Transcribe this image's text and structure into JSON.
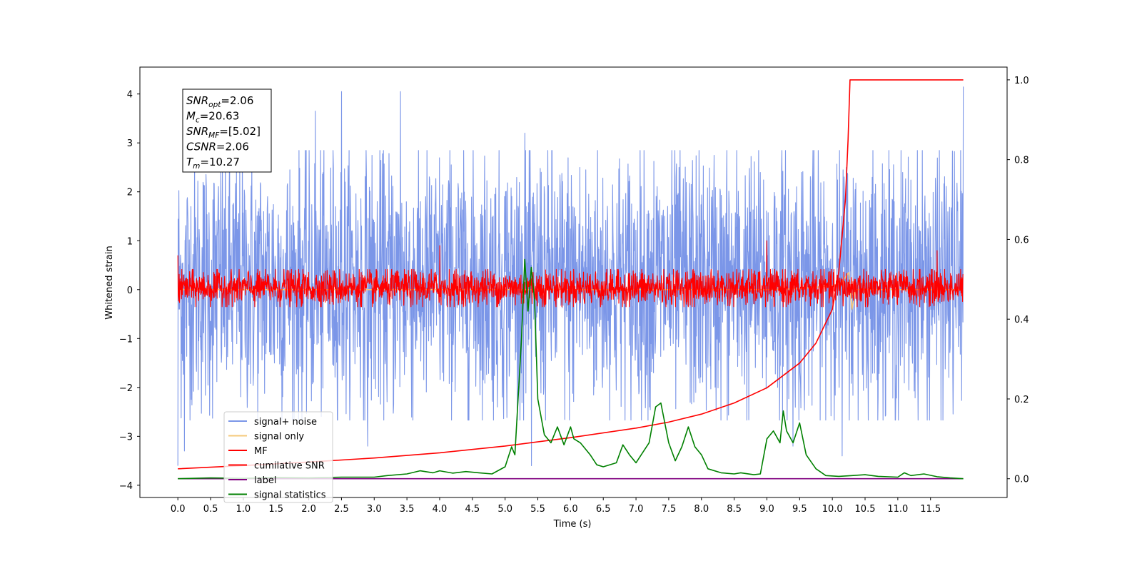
{
  "chart_data": {
    "type": "line",
    "title": "",
    "xlabel": "Time (s)",
    "ylabel": "Whitened strain",
    "y2label": "",
    "xlim": [
      -0.58,
      12.67
    ],
    "ylim": [
      -4.25,
      4.55
    ],
    "y2lim": [
      -0.047,
      1.032
    ],
    "x_ticks": [
      "0.0",
      "0.5",
      "1.0",
      "1.5",
      "2.0",
      "2.5",
      "3.0",
      "3.5",
      "4.0",
      "4.5",
      "5.0",
      "5.5",
      "6.0",
      "6.5",
      "7.0",
      "7.5",
      "8.0",
      "8.5",
      "9.0",
      "9.5",
      "10.0",
      "10.5",
      "11.0",
      "11.5"
    ],
    "y_ticks": [
      "4",
      "3",
      "2",
      "1",
      "0",
      "−1",
      "−2",
      "−3",
      "−4"
    ],
    "y2_ticks": [
      "1.0",
      "0.8",
      "0.6",
      "0.4",
      "0.2",
      "0.0"
    ],
    "grid": false,
    "legend_position": "lower-left",
    "annotation": {
      "lines": [
        {
          "base": "SNR",
          "sub": "opt",
          "value": "=2.06"
        },
        {
          "base": "M",
          "sub": "c",
          "value": "=20.63"
        },
        {
          "base": "SNR",
          "sub": "MF",
          "value": "=[5.02]"
        },
        {
          "base": "CSNR",
          "sub": "",
          "value": "=2.06"
        },
        {
          "base": "T",
          "sub": "m",
          "value": "=10.27"
        }
      ]
    },
    "series": [
      {
        "name": "signal+ noise",
        "color": "#7b96e8",
        "axis": "left",
        "x_range": [
          0,
          12
        ],
        "noise_envelope": [
          -2.3,
          2.6
        ],
        "peaks_high": [
          [
            2.5,
            4.05
          ],
          [
            3.4,
            4.05
          ],
          [
            2.1,
            3.65
          ],
          [
            5.3,
            3.2
          ],
          [
            12.0,
            4.15
          ]
        ],
        "peaks_low": [
          [
            0.0,
            -3.6
          ],
          [
            0.1,
            -3.3
          ],
          [
            2.9,
            -3.2
          ],
          [
            5.4,
            -3.6
          ],
          [
            10.15,
            -3.4
          ],
          [
            9.4,
            -3.2
          ]
        ]
      },
      {
        "name": "signal only",
        "color": "#f5c87a",
        "axis": "left",
        "x": [
          0,
          9.0,
          9.5,
          10.0,
          10.15,
          10.25,
          10.3,
          10.35,
          12
        ],
        "y": [
          0,
          0,
          0.02,
          0.08,
          0.15,
          0.35,
          -0.4,
          0,
          0
        ]
      },
      {
        "name": "MF",
        "color": "#ff0000",
        "axis": "left",
        "x_range": [
          0,
          12
        ],
        "noise_envelope": [
          -0.3,
          0.38
        ],
        "peaks_high": [
          [
            0.0,
            0.7
          ],
          [
            4.0,
            0.9
          ],
          [
            9.0,
            1.0
          ],
          [
            11.6,
            0.8
          ]
        ]
      },
      {
        "name": "cumilative SNR",
        "color": "#ff0000",
        "axis": "right",
        "x": [
          0,
          1,
          2,
          3,
          4,
          5,
          6,
          7,
          7.5,
          8,
          8.5,
          9,
          9.5,
          9.75,
          10.0,
          10.1,
          10.2,
          10.24,
          10.27,
          12.0
        ],
        "y": [
          0.025,
          0.033,
          0.042,
          0.052,
          0.065,
          0.082,
          0.103,
          0.127,
          0.142,
          0.162,
          0.19,
          0.228,
          0.29,
          0.34,
          0.425,
          0.52,
          0.7,
          0.85,
          1.0,
          1.0
        ]
      },
      {
        "name": "label",
        "color": "#800080",
        "axis": "right",
        "x": [
          0,
          12
        ],
        "y": [
          0,
          0
        ]
      },
      {
        "name": "signal statistics",
        "color": "#008000",
        "axis": "right",
        "x": [
          0,
          0.5,
          1.0,
          1.5,
          2.0,
          2.5,
          3.0,
          3.2,
          3.5,
          3.7,
          3.9,
          4.0,
          4.2,
          4.4,
          4.6,
          4.8,
          5.0,
          5.1,
          5.15,
          5.25,
          5.3,
          5.35,
          5.4,
          5.45,
          5.5,
          5.6,
          5.7,
          5.8,
          5.9,
          6.0,
          6.05,
          6.15,
          6.3,
          6.4,
          6.5,
          6.7,
          6.8,
          6.9,
          7.0,
          7.1,
          7.2,
          7.3,
          7.38,
          7.5,
          7.6,
          7.7,
          7.8,
          7.9,
          8.0,
          8.1,
          8.3,
          8.5,
          8.6,
          8.8,
          8.9,
          9.0,
          9.1,
          9.2,
          9.25,
          9.3,
          9.4,
          9.5,
          9.6,
          9.75,
          9.9,
          10.1,
          10.3,
          10.5,
          10.7,
          11.0,
          11.1,
          11.2,
          11.4,
          11.6,
          11.8,
          12.0
        ],
        "y": [
          0.0,
          0.002,
          0.001,
          0.003,
          0.002,
          0.004,
          0.004,
          0.008,
          0.012,
          0.02,
          0.015,
          0.02,
          0.014,
          0.018,
          0.015,
          0.012,
          0.03,
          0.08,
          0.06,
          0.35,
          0.55,
          0.42,
          0.53,
          0.45,
          0.2,
          0.11,
          0.09,
          0.13,
          0.085,
          0.13,
          0.1,
          0.09,
          0.06,
          0.035,
          0.03,
          0.04,
          0.085,
          0.06,
          0.04,
          0.065,
          0.09,
          0.18,
          0.19,
          0.09,
          0.045,
          0.08,
          0.13,
          0.08,
          0.06,
          0.025,
          0.015,
          0.012,
          0.015,
          0.01,
          0.012,
          0.1,
          0.12,
          0.09,
          0.17,
          0.12,
          0.09,
          0.14,
          0.06,
          0.025,
          0.008,
          0.006,
          0.008,
          0.01,
          0.006,
          0.004,
          0.015,
          0.008,
          0.012,
          0.005,
          0.002,
          0.0
        ]
      }
    ]
  }
}
